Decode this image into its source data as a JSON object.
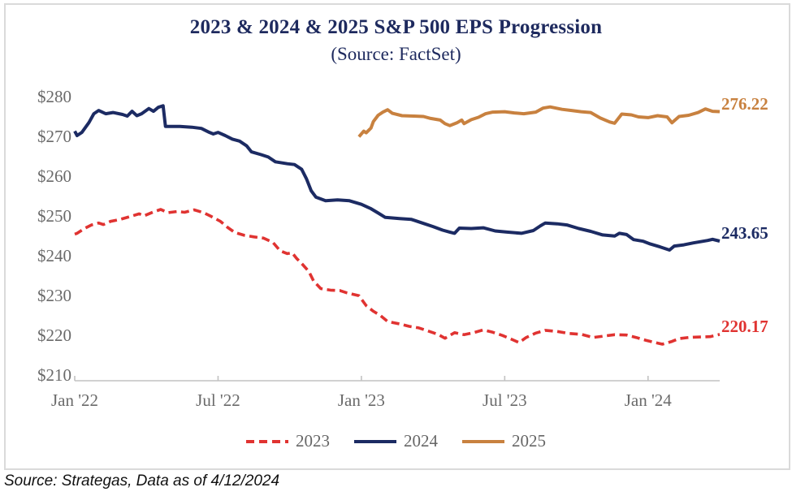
{
  "title": "2023 & 2024 & 2025 S&P 500 EPS Progression",
  "subtitle": "(Source: FactSet)",
  "footer": {
    "source_note": "Source: Strategas, Data as of 4/12/2024"
  },
  "colors": {
    "title_navy": "#1e2a5e",
    "axis_text_gray": "#6a6a6a",
    "axis_line_gray": "#c2c2c2",
    "series_2023_red": "#e03331",
    "series_2024_navy": "#1c2b63",
    "series_2025_orange": "#c8813f"
  },
  "chart_data": {
    "type": "line",
    "title": "2023 & 2024 & 2025 S&P 500 EPS Progression",
    "subtitle": "(Source: FactSet)",
    "grid": false,
    "legend_position": "bottom",
    "x_axis": {
      "unit": "months since Jan 2022",
      "range_months": [
        0,
        27
      ],
      "tick_months": [
        0,
        6,
        12,
        18,
        24
      ],
      "tick_labels": [
        "Jan '22",
        "Jul '22",
        "Jan '23",
        "Jul '23",
        "Jan '24"
      ]
    },
    "y_axis": {
      "range": [
        210,
        280
      ],
      "tick_values": [
        280,
        270,
        260,
        250,
        240,
        230,
        220,
        210
      ],
      "tick_labels": [
        "$280",
        "$270",
        "$260",
        "$250",
        "$240",
        "$230",
        "$220",
        "$210"
      ]
    },
    "series": [
      {
        "name": "2023",
        "style": "dashed",
        "color": "#e03331",
        "end_value": 220.17,
        "end_label": "220.17",
        "points": [
          [
            0,
            245.4
          ],
          [
            0.1,
            245.6
          ],
          [
            0.4,
            246.8
          ],
          [
            0.7,
            247.7
          ],
          [
            1.0,
            248.2
          ],
          [
            1.2,
            247.8
          ],
          [
            1.5,
            248.6
          ],
          [
            1.9,
            249.1
          ],
          [
            2.3,
            249.8
          ],
          [
            2.7,
            250.5
          ],
          [
            2.9,
            250.0
          ],
          [
            3.3,
            251.0
          ],
          [
            3.6,
            251.6
          ],
          [
            3.9,
            250.8
          ],
          [
            4.3,
            251.1
          ],
          [
            4.6,
            250.9
          ],
          [
            5.0,
            251.5
          ],
          [
            5.4,
            250.8
          ],
          [
            5.7,
            249.9
          ],
          [
            6.1,
            248.6
          ],
          [
            6.4,
            247.1
          ],
          [
            6.7,
            245.8
          ],
          [
            7.1,
            245.1
          ],
          [
            7.5,
            244.7
          ],
          [
            7.9,
            244.4
          ],
          [
            8.3,
            243.3
          ],
          [
            8.6,
            241.2
          ],
          [
            8.9,
            240.5
          ],
          [
            9.1,
            240.7
          ],
          [
            9.3,
            239.2
          ],
          [
            9.5,
            238.0
          ],
          [
            9.8,
            236.0
          ],
          [
            10.0,
            233.6
          ],
          [
            10.3,
            231.7
          ],
          [
            10.7,
            231.3
          ],
          [
            11.1,
            231.2
          ],
          [
            11.4,
            230.6
          ],
          [
            11.9,
            229.9
          ],
          [
            12.2,
            227.4
          ],
          [
            12.5,
            226.0
          ],
          [
            12.8,
            224.9
          ],
          [
            13.1,
            223.4
          ],
          [
            13.6,
            222.8
          ],
          [
            14.0,
            222.2
          ],
          [
            14.4,
            221.8
          ],
          [
            14.8,
            221.0
          ],
          [
            15.2,
            220.2
          ],
          [
            15.5,
            219.2
          ],
          [
            15.9,
            220.6
          ],
          [
            16.3,
            220.1
          ],
          [
            16.7,
            220.6
          ],
          [
            17.1,
            221.3
          ],
          [
            17.5,
            220.7
          ],
          [
            17.9,
            219.9
          ],
          [
            18.3,
            218.9
          ],
          [
            18.6,
            218.1
          ],
          [
            18.9,
            219.4
          ],
          [
            19.3,
            220.5
          ],
          [
            19.7,
            221.2
          ],
          [
            20.2,
            220.9
          ],
          [
            20.7,
            220.4
          ],
          [
            21.2,
            220.2
          ],
          [
            21.7,
            219.4
          ],
          [
            22.1,
            219.7
          ],
          [
            22.6,
            220.1
          ],
          [
            23.1,
            220.0
          ],
          [
            23.5,
            219.4
          ],
          [
            23.9,
            218.7
          ],
          [
            24.3,
            218.1
          ],
          [
            24.6,
            217.7
          ],
          [
            25.0,
            218.4
          ],
          [
            25.3,
            219.1
          ],
          [
            25.7,
            219.4
          ],
          [
            26.1,
            219.5
          ],
          [
            26.6,
            219.6
          ],
          [
            27,
            220.17
          ]
        ]
      },
      {
        "name": "2024",
        "style": "solid",
        "color": "#1c2b63",
        "end_value": 243.65,
        "end_label": "243.65",
        "points": [
          [
            0,
            271.3
          ],
          [
            0.1,
            270.2
          ],
          [
            0.3,
            271.0
          ],
          [
            0.6,
            273.5
          ],
          [
            0.8,
            275.7
          ],
          [
            1.0,
            276.5
          ],
          [
            1.3,
            275.7
          ],
          [
            1.6,
            276.0
          ],
          [
            2.0,
            275.5
          ],
          [
            2.2,
            275.1
          ],
          [
            2.4,
            276.3
          ],
          [
            2.6,
            275.2
          ],
          [
            2.8,
            275.7
          ],
          [
            3.1,
            277.0
          ],
          [
            3.3,
            276.3
          ],
          [
            3.5,
            277.3
          ],
          [
            3.7,
            277.7
          ],
          [
            3.8,
            272.5
          ],
          [
            4.4,
            272.5
          ],
          [
            4.9,
            272.3
          ],
          [
            5.3,
            272.0
          ],
          [
            5.6,
            271.1
          ],
          [
            5.8,
            270.6
          ],
          [
            6.0,
            271.0
          ],
          [
            6.3,
            270.2
          ],
          [
            6.6,
            269.3
          ],
          [
            6.9,
            268.8
          ],
          [
            7.2,
            267.6
          ],
          [
            7.4,
            266.1
          ],
          [
            7.8,
            265.4
          ],
          [
            8.1,
            264.8
          ],
          [
            8.4,
            263.6
          ],
          [
            8.9,
            263.1
          ],
          [
            9.2,
            262.9
          ],
          [
            9.5,
            261.7
          ],
          [
            9.7,
            259.3
          ],
          [
            9.9,
            256.3
          ],
          [
            10.1,
            254.7
          ],
          [
            10.5,
            253.8
          ],
          [
            11.0,
            254.0
          ],
          [
            11.5,
            253.8
          ],
          [
            12.0,
            252.9
          ],
          [
            12.4,
            251.8
          ],
          [
            12.7,
            250.7
          ],
          [
            13.0,
            249.6
          ],
          [
            13.6,
            249.3
          ],
          [
            14.1,
            249.1
          ],
          [
            14.6,
            248.1
          ],
          [
            15.0,
            247.3
          ],
          [
            15.4,
            246.4
          ],
          [
            15.7,
            245.9
          ],
          [
            15.9,
            245.6
          ],
          [
            16.1,
            246.9
          ],
          [
            16.6,
            246.8
          ],
          [
            17.1,
            247.0
          ],
          [
            17.6,
            246.2
          ],
          [
            18.1,
            245.9
          ],
          [
            18.7,
            245.6
          ],
          [
            19.2,
            246.3
          ],
          [
            19.5,
            247.5
          ],
          [
            19.7,
            248.2
          ],
          [
            20.2,
            248.0
          ],
          [
            20.6,
            247.7
          ],
          [
            21.1,
            246.8
          ],
          [
            21.6,
            246.1
          ],
          [
            22.1,
            245.2
          ],
          [
            22.6,
            244.9
          ],
          [
            22.8,
            245.6
          ],
          [
            23.1,
            245.3
          ],
          [
            23.4,
            244.0
          ],
          [
            23.8,
            243.6
          ],
          [
            24.1,
            242.9
          ],
          [
            24.5,
            242.2
          ],
          [
            24.9,
            241.4
          ],
          [
            25.1,
            242.4
          ],
          [
            25.5,
            242.7
          ],
          [
            25.9,
            243.2
          ],
          [
            26.2,
            243.5
          ],
          [
            26.5,
            243.8
          ],
          [
            26.7,
            244.1
          ],
          [
            27,
            243.65
          ]
        ]
      },
      {
        "name": "2025",
        "style": "solid",
        "color": "#c8813f",
        "end_value": 276.22,
        "end_label": "276.22",
        "points": [
          [
            11.9,
            269.9
          ],
          [
            12.1,
            271.3
          ],
          [
            12.2,
            270.9
          ],
          [
            12.4,
            272.1
          ],
          [
            12.5,
            273.7
          ],
          [
            12.7,
            275.3
          ],
          [
            12.9,
            276.1
          ],
          [
            13.1,
            276.7
          ],
          [
            13.3,
            275.8
          ],
          [
            13.7,
            275.2
          ],
          [
            14.2,
            275.1
          ],
          [
            14.6,
            275.0
          ],
          [
            14.9,
            274.5
          ],
          [
            15.3,
            274.1
          ],
          [
            15.5,
            273.2
          ],
          [
            15.7,
            272.7
          ],
          [
            16.0,
            273.4
          ],
          [
            16.2,
            274.1
          ],
          [
            16.3,
            273.2
          ],
          [
            16.6,
            274.2
          ],
          [
            16.9,
            274.8
          ],
          [
            17.2,
            275.7
          ],
          [
            17.5,
            276.1
          ],
          [
            18.0,
            276.2
          ],
          [
            18.4,
            275.9
          ],
          [
            18.8,
            275.7
          ],
          [
            19.3,
            276.1
          ],
          [
            19.6,
            277.1
          ],
          [
            19.9,
            277.4
          ],
          [
            20.4,
            276.8
          ],
          [
            20.8,
            276.5
          ],
          [
            21.2,
            276.2
          ],
          [
            21.6,
            276.0
          ],
          [
            22.0,
            274.6
          ],
          [
            22.4,
            273.6
          ],
          [
            22.6,
            273.3
          ],
          [
            22.9,
            275.6
          ],
          [
            23.3,
            275.4
          ],
          [
            23.6,
            274.9
          ],
          [
            24.0,
            274.7
          ],
          [
            24.4,
            275.2
          ],
          [
            24.8,
            274.9
          ],
          [
            25.0,
            273.4
          ],
          [
            25.3,
            275.0
          ],
          [
            25.7,
            275.3
          ],
          [
            26.1,
            276.0
          ],
          [
            26.4,
            276.9
          ],
          [
            26.7,
            276.3
          ],
          [
            27,
            276.22
          ]
        ]
      }
    ]
  }
}
